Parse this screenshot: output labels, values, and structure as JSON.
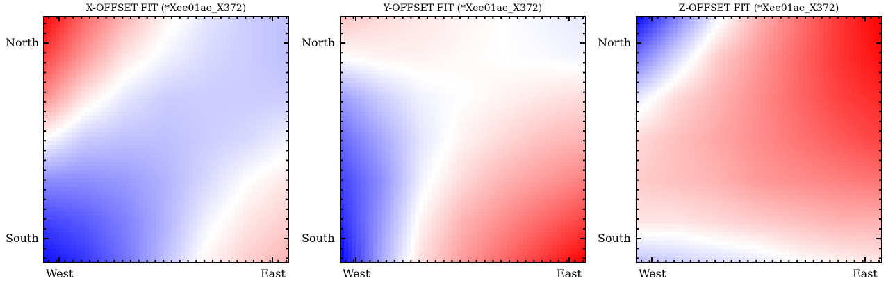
{
  "chart_data": [
    {
      "type": "heatmap",
      "title": "X-OFFSET FIT (*Xee01ae_X372)",
      "x_tick_labels": [
        "West",
        "East"
      ],
      "y_tick_labels": [
        "North",
        "South"
      ],
      "colormap": {
        "low": "#0000ff",
        "mid": "#ffffff",
        "high": "#ff0000"
      },
      "grid_corner_values": {
        "north_west": 1.0,
        "north_east": -0.25,
        "south_west": -0.95,
        "south_east": 0.3
      },
      "values": [
        [
          1.0,
          0.6,
          0.3,
          0.05,
          -0.1,
          -0.2,
          -0.25
        ],
        [
          0.75,
          0.4,
          0.1,
          -0.05,
          -0.15,
          -0.2,
          -0.25
        ],
        [
          0.45,
          0.1,
          -0.1,
          -0.2,
          -0.2,
          -0.2,
          -0.2
        ],
        [
          0.0,
          -0.2,
          -0.25,
          -0.25,
          -0.2,
          -0.15,
          -0.05
        ],
        [
          -0.45,
          -0.45,
          -0.4,
          -0.3,
          -0.15,
          0.0,
          0.1
        ],
        [
          -0.75,
          -0.65,
          -0.5,
          -0.3,
          -0.05,
          0.1,
          0.2
        ],
        [
          -0.95,
          -0.8,
          -0.55,
          -0.25,
          0.05,
          0.2,
          0.3
        ]
      ]
    },
    {
      "type": "heatmap",
      "title": "Y-OFFSET FIT (*Xee01ae_X372)",
      "x_tick_labels": [
        "West",
        "East"
      ],
      "y_tick_labels": [
        "North",
        "South"
      ],
      "colormap": {
        "low": "#0000ff",
        "mid": "#ffffff",
        "high": "#ff0000"
      },
      "values": [
        [
          0.25,
          0.15,
          0.1,
          0.05,
          0.0,
          -0.05,
          -0.1
        ],
        [
          0.0,
          0.05,
          0.05,
          0.02,
          0.0,
          -0.02,
          -0.05
        ],
        [
          -0.4,
          -0.2,
          -0.05,
          0.0,
          0.05,
          0.1,
          0.15
        ],
        [
          -0.6,
          -0.35,
          -0.1,
          0.05,
          0.15,
          0.25,
          0.3
        ],
        [
          -0.75,
          -0.45,
          -0.05,
          0.15,
          0.3,
          0.4,
          0.5
        ],
        [
          -0.85,
          -0.4,
          0.05,
          0.3,
          0.45,
          0.6,
          0.75
        ],
        [
          -1.0,
          -0.35,
          0.15,
          0.4,
          0.6,
          0.8,
          1.0
        ]
      ]
    },
    {
      "type": "heatmap",
      "title": "Z-OFFSET FIT (*Xee01ae_X372)",
      "x_tick_labels": [
        "West",
        "East"
      ],
      "y_tick_labels": [
        "North",
        "South"
      ],
      "colormap": {
        "low": "#0000ff",
        "mid": "#ffffff",
        "high": "#ff0000"
      },
      "values": [
        [
          -1.0,
          -0.5,
          -0.05,
          0.3,
          0.55,
          0.8,
          1.0
        ],
        [
          -0.55,
          -0.15,
          0.2,
          0.4,
          0.6,
          0.8,
          0.95
        ],
        [
          -0.1,
          0.15,
          0.3,
          0.45,
          0.6,
          0.75,
          0.85
        ],
        [
          0.15,
          0.25,
          0.35,
          0.45,
          0.55,
          0.65,
          0.75
        ],
        [
          0.2,
          0.25,
          0.3,
          0.4,
          0.45,
          0.5,
          0.55
        ],
        [
          0.1,
          0.1,
          0.15,
          0.2,
          0.25,
          0.3,
          0.3
        ],
        [
          -0.25,
          -0.2,
          -0.15,
          -0.1,
          0.0,
          0.05,
          0.1
        ]
      ]
    }
  ]
}
